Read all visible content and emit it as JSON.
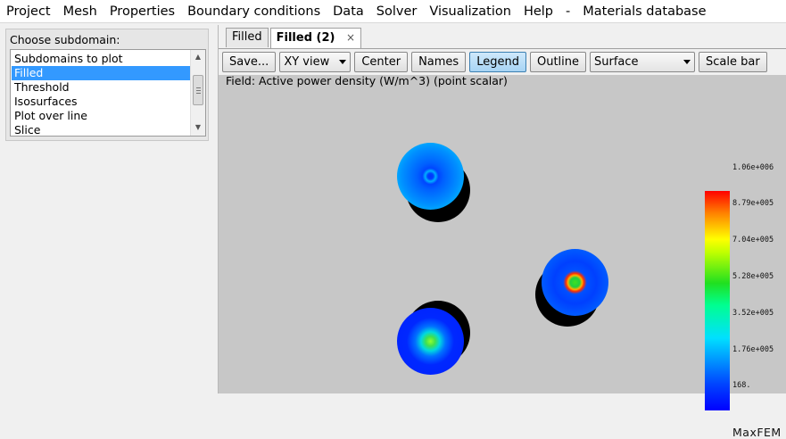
{
  "menu": [
    "Project",
    "Mesh",
    "Properties",
    "Boundary conditions",
    "Data",
    "Solver",
    "Visualization",
    "Help",
    "-",
    "Materials database"
  ],
  "left_panel": {
    "title": "Choose subdomain:",
    "items": [
      "Subdomains to plot",
      "Filled",
      "Threshold",
      "Isosurfaces",
      "Plot over line",
      "Slice"
    ],
    "selected_index": 1
  },
  "tabs": [
    {
      "label": "Filled"
    },
    {
      "label": "Filled (2)",
      "close": "×"
    }
  ],
  "toolbar": {
    "save": "Save...",
    "view_select": "XY view",
    "center": "Center",
    "names": "Names",
    "legend": "Legend",
    "outline": "Outline",
    "representation_select": "Surface",
    "scale_bar": "Scale bar"
  },
  "plot": {
    "field_label": "Field: Active power density (W/m^3) (point scalar)",
    "colorbar_labels": [
      "1.06e+006",
      "8.79e+005",
      "7.04e+005",
      "5.28e+005",
      "3.52e+005",
      "1.76e+005",
      "168."
    ],
    "brand": "MaxFEM"
  },
  "colors": {
    "selection": "#3399ff",
    "pressed_button": "#a7d4f4",
    "plot_background": "#c7c7c7"
  }
}
